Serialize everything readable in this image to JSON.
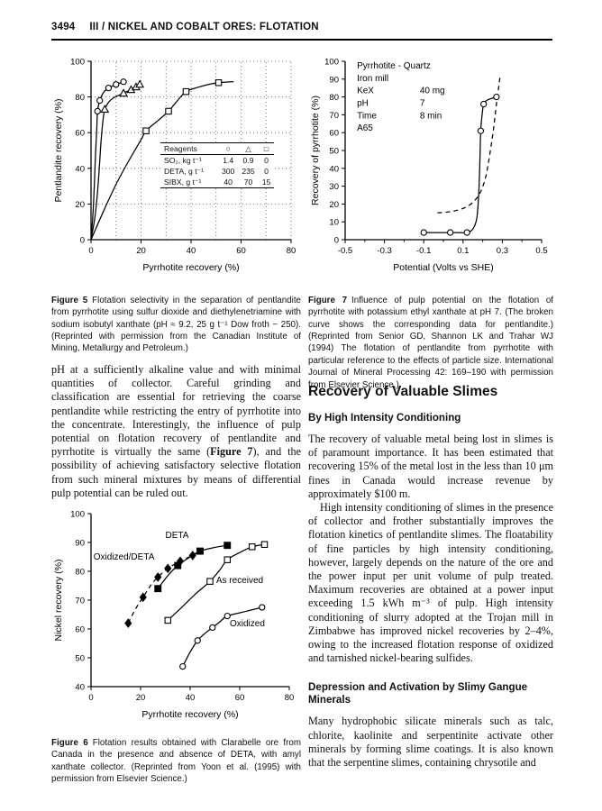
{
  "header": {
    "page_number": "3494",
    "title": "III / NICKEL AND COBALT ORES: FLOTATION"
  },
  "left_column": {
    "paragraph": {
      "before": "pH at a sufficiently alkaline value and with minimal quantities of collector. Careful grinding and classification are essential for retrieving the coarse pentlandite while restricting the entry of pyrrhotite into the concentrate. Interestingly, the influence of pulp potential on flotation recovery of pentlandite and pyrrhotite is virtually the same (",
      "figref": "Figure 7",
      "after": "), and the possibility of achieving satisfactory selective flotation from such mineral mixtures by means of differential pulp potential can be ruled out."
    }
  },
  "figures": {
    "fig5": {
      "caption_label": "Figure 5",
      "caption_text": "Flotation selectivity in the separation of pentlandite from pyrrhotite using sulfur dioxide and diethylenetriamine with sodium isobutyl xanthate (pH ≈ 9.2, 25 g t⁻¹ Dow froth − 250). (Reprinted with permission from the Canadian Institute of Mining, Metallurgy and Petroleum.)",
      "inset_table": {
        "headers": [
          "Reagents",
          "○",
          "△",
          "□"
        ],
        "rows": [
          [
            "SO₂, kg t⁻¹",
            "1.4",
            "0.9",
            "0"
          ],
          [
            "DETA, g t⁻¹",
            "300",
            "235",
            "0"
          ],
          [
            "SIBX, g t⁻¹",
            "40",
            "70",
            "15"
          ]
        ]
      }
    },
    "fig7": {
      "caption_label": "Figure 7",
      "caption_text": "Influence of pulp potential on the flotation of pyrrhotite with potassium ethyl xanthate at pH 7. (The broken curve shows the corresponding data for pentlandite.) (Reprinted from Senior GD, Shannon LK and Trahar WJ (1994) The flotation of pentlandite from pyrrhotite with particular reference to the effects of particle size. International Journal of Mineral Processing 42: 169–190 with permission from Elsevier Science.)"
    },
    "fig6": {
      "caption_label": "Figure 6",
      "caption_text": "Flotation results obtained with Clarabelle ore from Canada in the presence and absence of DETA, with amyl xanthate collector. (Reprinted from Yoon et al. (1995) with permission from Elsevier Science.)"
    }
  },
  "right_column": {
    "section_title": "Recovery of Valuable Slimes",
    "sub1": "By High Intensity Conditioning",
    "para1": "The recovery of valuable metal being lost in slimes is of paramount importance. It has been estimated that recovering 15% of the metal lost in the less than 10 μm fines in Canada would increase revenue by approximately $100 m.",
    "para2": "High intensity conditioning of slimes in the presence of collector and frother substantially improves the flotation kinetics of pentlandite slimes. The floatability of fine particles by high intensity conditioning, however, largely depends on the nature of the ore and the power input per unit volume of pulp treated. Maximum recoveries are obtained at a power input exceeding 1.5 kWh m⁻³ of pulp. High intensity conditioning of slurry adopted at the Trojan mill in Zimbabwe has improved nickel recoveries by 2–4%, owing to the increased flotation response of oxidized and tarnished nickel-bearing sulfides.",
    "sub2": "Depression and Activation by Slimy Gangue Minerals",
    "para3": "Many hydrophobic silicate minerals such as talc, chlorite, kaolinite and serpentinite activate other minerals by forming slime coatings. It is also known that the serpentine slimes, containing chrysotile and"
  },
  "chart_data": [
    {
      "id": "figure5",
      "type": "line",
      "xlabel": "Pyrrhotite recovery (%)",
      "ylabel": "Pentlandite recovery (%)",
      "xlim": [
        0,
        80
      ],
      "ylim": [
        0,
        100
      ],
      "xticks": [
        0,
        20,
        40,
        60,
        80
      ],
      "yticks": [
        0,
        20,
        40,
        60,
        80,
        100
      ],
      "grid": {
        "x_step": 10,
        "y_step": 20,
        "style": "dotted"
      },
      "series": [
        {
          "name": "SO2 1.4 kg/t, DETA 300 g/t, SIBX 40 g/t",
          "symbol": "circle-open",
          "line": "solid",
          "points": [
            [
              0,
              0
            ],
            [
              0.8,
              15
            ],
            [
              1.3,
              30
            ],
            [
              1.8,
              48
            ],
            [
              2.3,
              62
            ],
            [
              2.6,
              72
            ],
            [
              3.5,
              78
            ],
            [
              5,
              82.5
            ],
            [
              7,
              85
            ],
            [
              10,
              87
            ],
            [
              13,
              88.5
            ]
          ],
          "markers": [
            [
              2.6,
              72
            ],
            [
              3.5,
              78
            ],
            [
              7,
              85
            ],
            [
              10,
              87
            ],
            [
              13,
              88.5
            ]
          ]
        },
        {
          "name": "SO2 0.9 kg/t, DETA 235 g/t, SIBX 70 g/t",
          "symbol": "triangle-open",
          "line": "solid",
          "points": [
            [
              0,
              0
            ],
            [
              1.5,
              12
            ],
            [
              2.5,
              25
            ],
            [
              3.3,
              40
            ],
            [
              4,
              55
            ],
            [
              4.8,
              67
            ],
            [
              5.5,
              73
            ],
            [
              7,
              77
            ],
            [
              9,
              79.5
            ],
            [
              12,
              81.5
            ],
            [
              15,
              83.5
            ],
            [
              17.5,
              85.5
            ],
            [
              19.5,
              87
            ]
          ],
          "markers": [
            [
              5.5,
              73
            ],
            [
              13,
              82
            ],
            [
              16,
              84
            ],
            [
              18,
              85.5
            ],
            [
              19.5,
              87
            ]
          ]
        },
        {
          "name": "SIBX 15 g/t only",
          "symbol": "square-open",
          "line": "solid",
          "points": [
            [
              0,
              0
            ],
            [
              5,
              16
            ],
            [
              10,
              31
            ],
            [
              15,
              44
            ],
            [
              20,
              56
            ],
            [
              22,
              61
            ],
            [
              27,
              67
            ],
            [
              31,
              72
            ],
            [
              34,
              77
            ],
            [
              38,
              83
            ],
            [
              43,
              85.5
            ],
            [
              47,
              87
            ],
            [
              51,
              88
            ],
            [
              57,
              88.6
            ]
          ],
          "markers": [
            [
              22,
              61
            ],
            [
              31,
              72
            ],
            [
              38,
              83
            ],
            [
              51,
              88
            ]
          ]
        }
      ]
    },
    {
      "id": "figure7",
      "type": "line",
      "xlabel": "Potential (Volts vs SHE)",
      "ylabel": "Recovery of pyrrhotite (%)",
      "xlim": [
        -0.5,
        0.5
      ],
      "ylim": [
        0,
        100
      ],
      "xticks": [
        -0.5,
        -0.3,
        -0.1,
        0.1,
        0.3,
        0.5
      ],
      "xtick_labels": [
        "-0.5",
        "-0.3",
        "-0.1",
        "0.1",
        "0.3",
        "0.5"
      ],
      "xminor": [
        -0.4,
        -0.2,
        0,
        0.2,
        0.4
      ],
      "yticks": [
        0,
        10,
        20,
        30,
        40,
        50,
        60,
        70,
        80,
        90,
        100
      ],
      "series": [
        {
          "name": "pyrrhotite",
          "symbol": "circle-open",
          "line": "solid",
          "points": [
            [
              -0.1,
              4
            ],
            [
              0,
              4
            ],
            [
              0.07,
              4
            ],
            [
              0.12,
              4
            ],
            [
              0.15,
              6
            ],
            [
              0.17,
              12
            ],
            [
              0.18,
              26
            ],
            [
              0.186,
              45
            ],
            [
              0.19,
              61
            ],
            [
              0.197,
              70
            ],
            [
              0.205,
              76
            ],
            [
              0.22,
              78
            ],
            [
              0.24,
              79
            ],
            [
              0.27,
              80
            ]
          ],
          "markers": [
            [
              -0.1,
              4
            ],
            [
              0.035,
              4
            ],
            [
              0.12,
              4
            ],
            [
              0.19,
              61
            ],
            [
              0.205,
              76
            ],
            [
              0.27,
              80
            ]
          ]
        },
        {
          "name": "pentlandite (broken curve)",
          "symbol": "none",
          "line": "dashed",
          "points": [
            [
              -0.03,
              15
            ],
            [
              0.02,
              15.5
            ],
            [
              0.07,
              16.5
            ],
            [
              0.12,
              18.5
            ],
            [
              0.16,
              22
            ],
            [
              0.19,
              27
            ],
            [
              0.215,
              35
            ],
            [
              0.235,
              47
            ],
            [
              0.255,
              62
            ],
            [
              0.27,
              76
            ],
            [
              0.282,
              86
            ],
            [
              0.288,
              91
            ]
          ],
          "markers": []
        }
      ],
      "annotations": [
        {
          "x": -0.44,
          "y": 96,
          "text": "Pyrrhotite - Quartz"
        },
        {
          "x": -0.44,
          "y": 89,
          "text": "Iron mill"
        },
        {
          "x": -0.44,
          "y": 82,
          "text": "KeX"
        },
        {
          "x": -0.12,
          "y": 82,
          "text": "40 mg"
        },
        {
          "x": -0.44,
          "y": 75,
          "text": "pH"
        },
        {
          "x": -0.12,
          "y": 75,
          "text": "7"
        },
        {
          "x": -0.44,
          "y": 68,
          "text": "Time"
        },
        {
          "x": -0.12,
          "y": 68,
          "text": "8 min"
        },
        {
          "x": -0.44,
          "y": 61,
          "text": "A65"
        }
      ]
    },
    {
      "id": "figure6",
      "type": "line",
      "xlabel": "Pyrrhotite recovery (%)",
      "ylabel": "Nickel recovery (%)",
      "xlim": [
        0,
        80
      ],
      "ylim": [
        40,
        100
      ],
      "xticks": [
        0,
        20,
        40,
        60,
        80
      ],
      "yticks": [
        40,
        50,
        60,
        70,
        80,
        90,
        100
      ],
      "series": [
        {
          "name": "Oxidized/DETA",
          "symbol": "diamond-filled",
          "line": "dashed",
          "points": [
            [
              15,
              62
            ],
            [
              18,
              67
            ],
            [
              21,
              71
            ],
            [
              24,
              75
            ],
            [
              27,
              78
            ],
            [
              31,
              81
            ],
            [
              36,
              83.5
            ],
            [
              41,
              85.5
            ],
            [
              44,
              86.8
            ]
          ],
          "markers": [
            [
              15,
              62
            ],
            [
              21,
              71
            ],
            [
              27,
              78
            ],
            [
              31,
              81
            ],
            [
              36,
              83.5
            ],
            [
              41,
              85.5
            ]
          ]
        },
        {
          "name": "DETA",
          "symbol": "square-filled",
          "line": "solid",
          "points": [
            [
              27,
              74
            ],
            [
              31,
              78.5
            ],
            [
              35,
              82
            ],
            [
              40,
              85
            ],
            [
              44,
              87
            ],
            [
              50,
              88.3
            ],
            [
              55,
              89
            ]
          ],
          "markers": [
            [
              27,
              74
            ],
            [
              35,
              82
            ],
            [
              44,
              87
            ],
            [
              55,
              89
            ]
          ]
        },
        {
          "name": "As received",
          "symbol": "square-open",
          "line": "solid",
          "points": [
            [
              31,
              63
            ],
            [
              36,
              67
            ],
            [
              42,
              72
            ],
            [
              48,
              76.5
            ],
            [
              52,
              80.5
            ],
            [
              55,
              84
            ],
            [
              60,
              86.5
            ],
            [
              65,
              88.5
            ],
            [
              70,
              89.3
            ]
          ],
          "markers": [
            [
              31,
              63
            ],
            [
              48,
              76.5
            ],
            [
              55,
              84
            ],
            [
              65,
              88.5
            ],
            [
              70,
              89.3
            ]
          ]
        },
        {
          "name": "Oxidized",
          "symbol": "circle-open",
          "line": "solid",
          "points": [
            [
              37,
              47
            ],
            [
              40,
              52
            ],
            [
              43,
              56
            ],
            [
              46,
              58.5
            ],
            [
              49,
              60.5
            ],
            [
              52,
              62.5
            ],
            [
              55,
              64.5
            ],
            [
              62,
              66
            ],
            [
              69,
              67.5
            ]
          ],
          "markers": [
            [
              37,
              47
            ],
            [
              43,
              56
            ],
            [
              49,
              60.5
            ],
            [
              55,
              64.5
            ],
            [
              69,
              67.5
            ]
          ]
        }
      ],
      "annotations": [
        {
          "x": 30,
          "y": 91.5,
          "text": "DETA"
        },
        {
          "x": 1,
          "y": 84,
          "text": "Oxidized/DETA"
        },
        {
          "x": 50.5,
          "y": 76,
          "text": "As received"
        },
        {
          "x": 56,
          "y": 61,
          "text": "Oxidized"
        }
      ]
    }
  ]
}
